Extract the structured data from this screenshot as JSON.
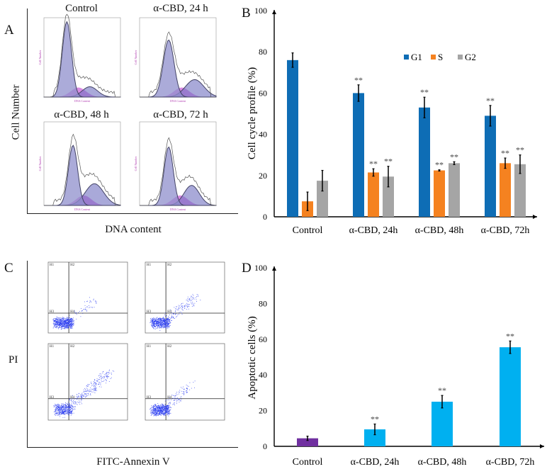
{
  "panel_a": {
    "letter": "A",
    "ylabel": "Cell Number",
    "xlabel": "DNA content",
    "subplots": [
      {
        "title": "Control",
        "inner_ylabel": "Cell Number",
        "inner_xlabel": "DNA Content"
      },
      {
        "title": "α-CBD, 24 h",
        "inner_ylabel": "Cell Number",
        "inner_xlabel": "DNA Content"
      },
      {
        "title": "α-CBD, 48 h",
        "inner_ylabel": "Cell Number",
        "inner_xlabel": "DNA Content"
      },
      {
        "title": "α-CBD, 72 h",
        "inner_ylabel": "Cell Number",
        "inner_xlabel": "DNA Content"
      }
    ]
  },
  "panel_c": {
    "letter": "C",
    "ylabel": "PI",
    "xlabel": "FITC-Annexin V",
    "quadrants": [
      "H1",
      "H2",
      "H3",
      "H4"
    ]
  },
  "chart_data": [
    {
      "panel": "B",
      "type": "bar",
      "title": "",
      "xlabel": "",
      "ylabel": "Cell cycle profile (%)",
      "ylim": [
        0,
        100
      ],
      "yticks": [
        0,
        20,
        40,
        60,
        80,
        100
      ],
      "grid": false,
      "legend": "top-right",
      "categories": [
        "Control",
        "α-CBD, 24h",
        "α-CBD, 48h",
        "α-CBD, 72h"
      ],
      "series": [
        {
          "name": "G1",
          "color": "#0e6db5",
          "values": [
            76,
            60,
            53,
            49
          ],
          "errors": [
            3.5,
            4,
            5,
            5
          ],
          "significance": [
            "",
            "**",
            "**",
            "**"
          ]
        },
        {
          "name": "S",
          "color": "#f58220",
          "values": [
            7.5,
            21.5,
            22.5,
            26
          ],
          "errors": [
            4.5,
            1.8,
            0.3,
            2.5
          ],
          "significance": [
            "",
            "**",
            "**",
            "**"
          ]
        },
        {
          "name": "G2",
          "color": "#a5a5a5",
          "values": [
            17.5,
            19.5,
            26,
            25.5
          ],
          "errors": [
            5,
            5,
            0.7,
            4.5
          ],
          "significance": [
            "",
            "**",
            "**",
            "**"
          ]
        }
      ]
    },
    {
      "panel": "D",
      "type": "bar",
      "title": "",
      "xlabel": "",
      "ylabel": "Apoptotic cells (%)",
      "ylim": [
        0,
        100
      ],
      "yticks": [
        0,
        20,
        40,
        60,
        80,
        100
      ],
      "grid": false,
      "categories": [
        "Control",
        "α-CBD, 24h",
        "α-CBD, 48h",
        "α-CBD, 72h"
      ],
      "values": [
        4.5,
        9.5,
        25,
        55.5
      ],
      "errors": [
        1.2,
        3,
        3.5,
        3.5
      ],
      "colors": [
        "#7030a0",
        "#00b0f0",
        "#00b0f0",
        "#00b0f0"
      ],
      "significance": [
        "",
        "**",
        "**",
        "**"
      ]
    }
  ]
}
